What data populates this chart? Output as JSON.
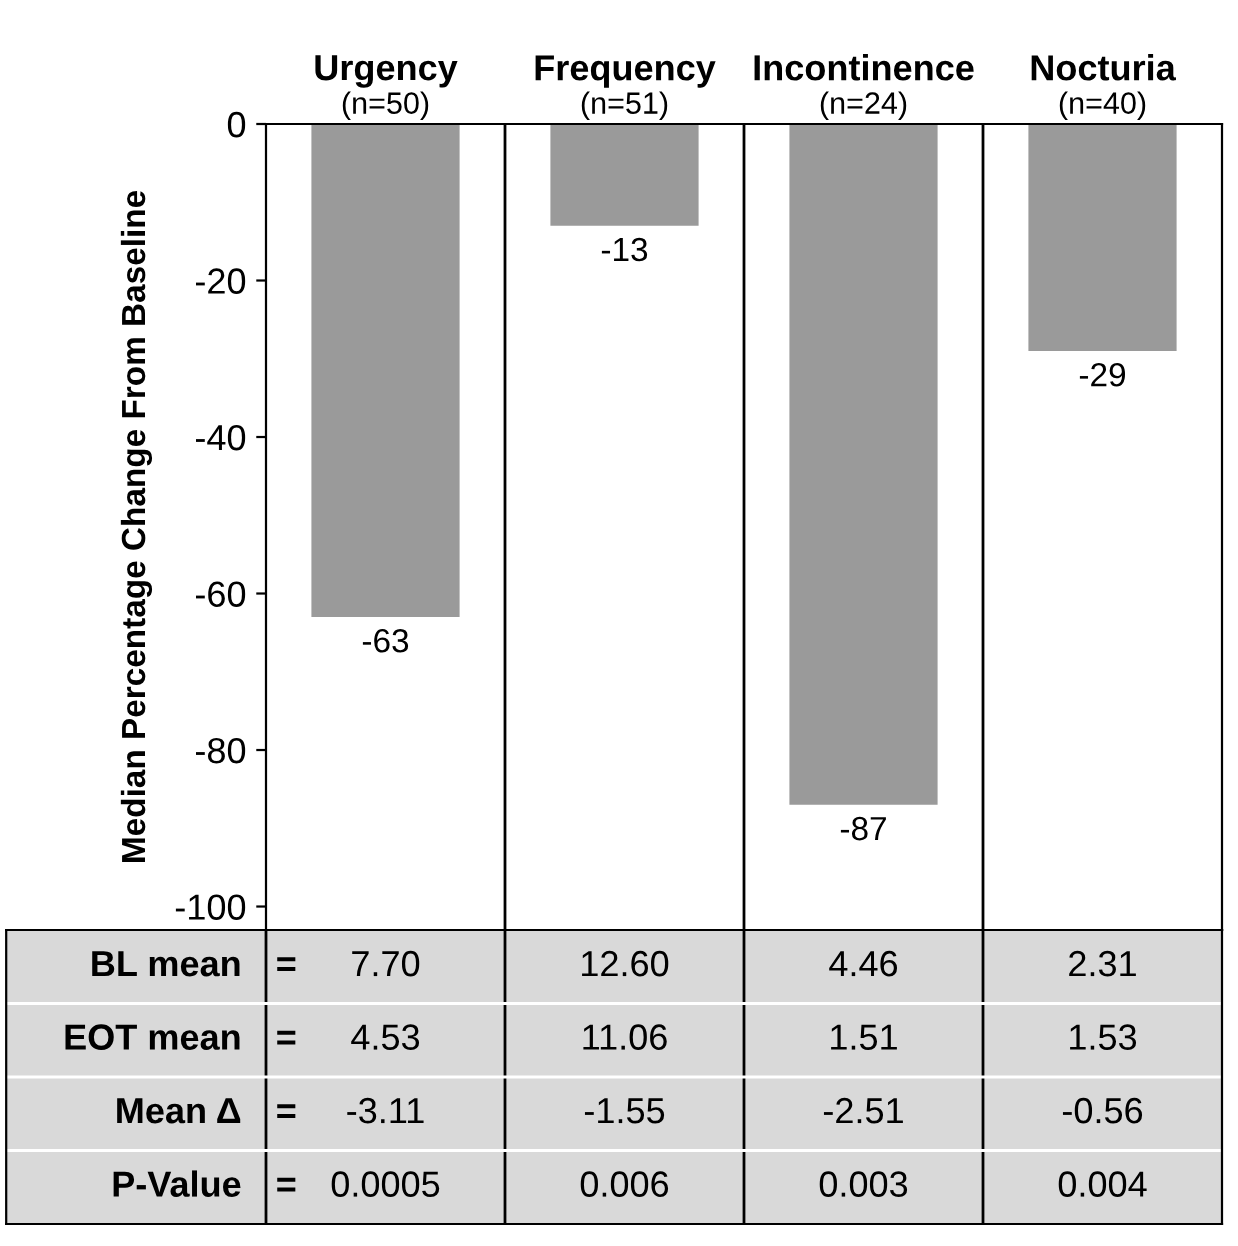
{
  "chart_data": {
    "type": "bar",
    "categories": [
      "Urgency\n(n=50)",
      "Frequency\n(n=51)",
      "Incontinence\n(n=24)",
      "Nocturia\n(n=40)"
    ],
    "values": [
      -63,
      -13,
      -87,
      -29
    ],
    "color": "#9a9a9a",
    "data_labels": true,
    "ylabel": "Median Percentage Change From Baseline",
    "ylim": [
      -103,
      0
    ],
    "yticks": [
      0,
      -20,
      -40,
      -60,
      -80,
      -100
    ],
    "grid": false,
    "legend": false,
    "annotations": [
      "BL mean",
      "=",
      "7.70",
      "12.60",
      "4.46",
      "2.31",
      "EOT mean",
      "=",
      "4.53",
      "11.06",
      "1.51",
      "1.53",
      "Mean Δ",
      "=",
      "-3.11",
      "-1.55",
      "-2.51",
      "-0.56",
      "P-Value",
      "=",
      "0.0005",
      "0.006",
      "0.003",
      "0.004"
    ]
  }
}
